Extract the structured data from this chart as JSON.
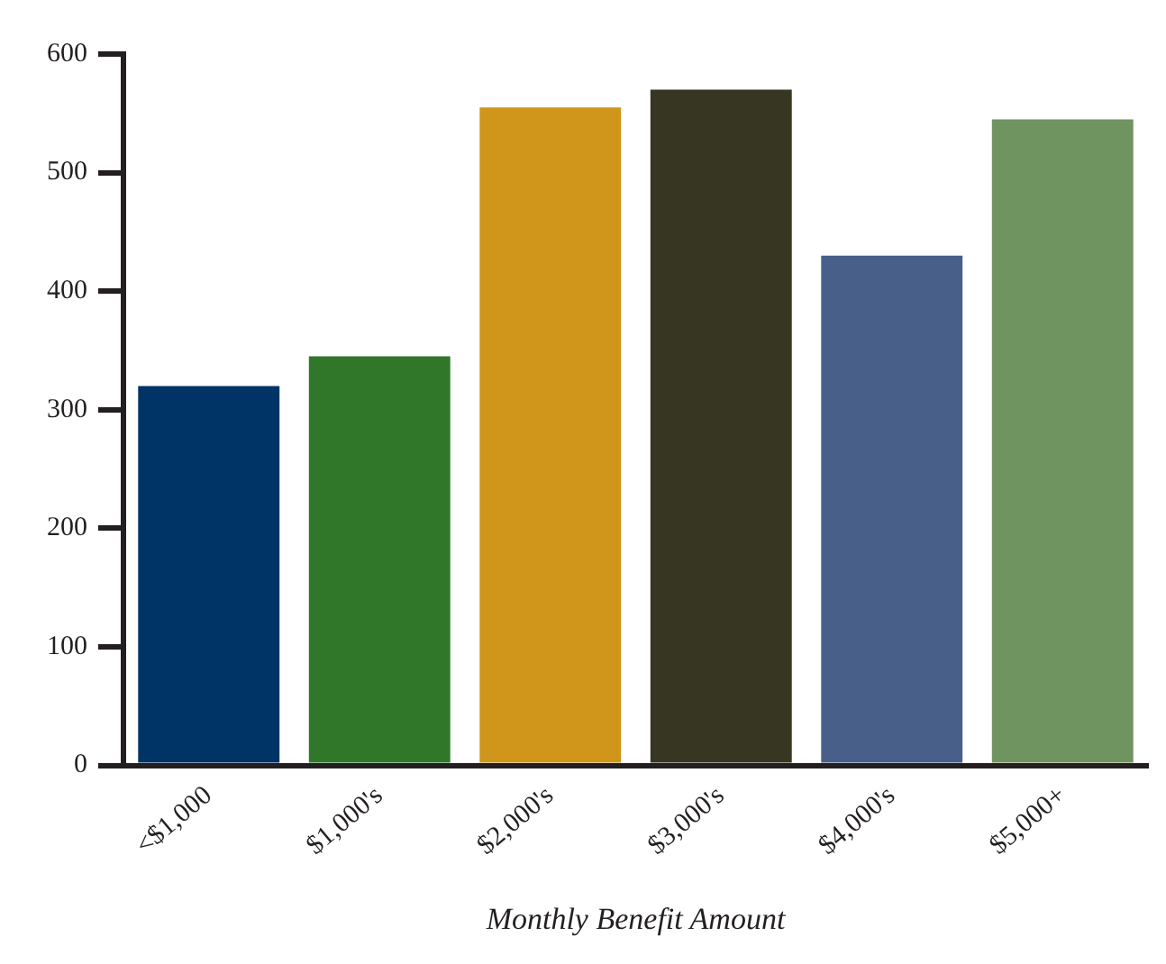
{
  "chart_data": {
    "type": "bar",
    "xlabel": "Monthly Benefit Amount",
    "categories": [
      "<$1,000",
      "$1,000's",
      "$2,000's",
      "$3,000's",
      "$4,000's",
      "$5,000+"
    ],
    "values": [
      320,
      345,
      555,
      570,
      430,
      545
    ],
    "colors": [
      "#003366",
      "#31772a",
      "#d0961c",
      "#363622",
      "#486089",
      "#70945f"
    ],
    "ylim": [
      0,
      600
    ],
    "yticks": [
      0,
      100,
      200,
      300,
      400,
      500,
      600
    ],
    "grid": false,
    "legend": false
  }
}
